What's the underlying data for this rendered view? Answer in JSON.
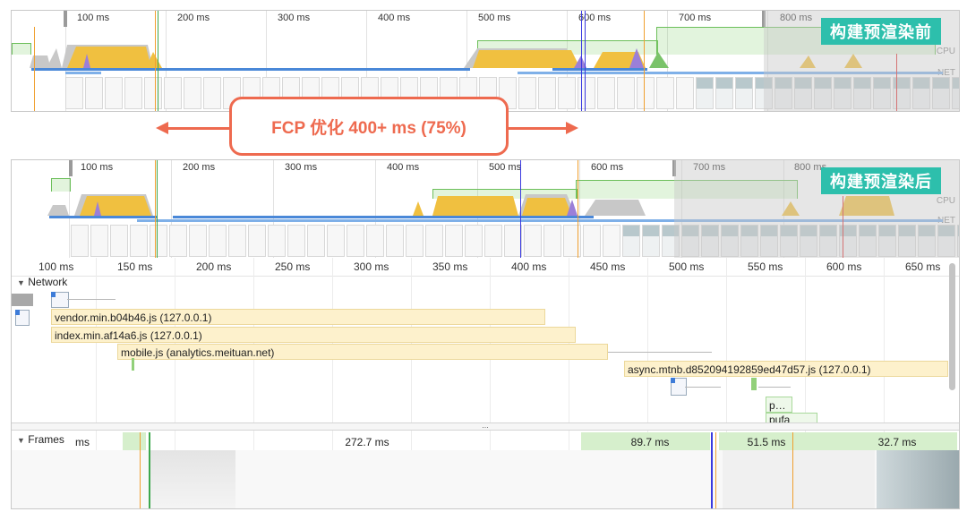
{
  "top_timeline": {
    "ticks": [
      "100 ms",
      "200 ms",
      "300 ms",
      "400 ms",
      "500 ms",
      "600 ms",
      "700 ms",
      "800 ms"
    ],
    "side_labels": [
      "CPU",
      "NET"
    ],
    "tag": "构建预渲染前"
  },
  "callout": {
    "text": "FCP 优化 400+ ms (75%)"
  },
  "bottom_timeline": {
    "ticks": [
      "100 ms",
      "200 ms",
      "300 ms",
      "400 ms",
      "500 ms",
      "600 ms",
      "700 ms",
      "800 ms"
    ],
    "side_labels": [
      "CPU",
      "NET"
    ],
    "tag": "构建预渲染后"
  },
  "detail_ruler": {
    "ticks": [
      "100 ms",
      "150 ms",
      "200 ms",
      "250 ms",
      "300 ms",
      "350 ms",
      "400 ms",
      "450 ms",
      "500 ms",
      "550 ms",
      "600 ms",
      "650 ms"
    ]
  },
  "network": {
    "title": "Network",
    "requests": [
      "vendor.min.b04b46.js (127.0.0.1)",
      "index.min.af14a6.js (127.0.0.1)",
      "mobile.js (analytics.meituan.net)",
      "async.mtnb.d852094192859ed47d57.js (127.0.0.1)",
      "p…",
      "pufa"
    ]
  },
  "frames": {
    "title": "Frames",
    "cells": [
      "ms",
      "272.7 ms",
      "89.7 ms",
      "51.5 ms",
      "32.7 ms"
    ]
  },
  "splitter": "...",
  "colors": {
    "scripting": "#f0c040",
    "rendering": "#9b7fd8",
    "painting": "#7ac36a",
    "idle": "#c8c8c8",
    "network_bar": "#4a88d8",
    "highlight": "#ee6a4f",
    "tag_bg": "#2dbfac"
  }
}
